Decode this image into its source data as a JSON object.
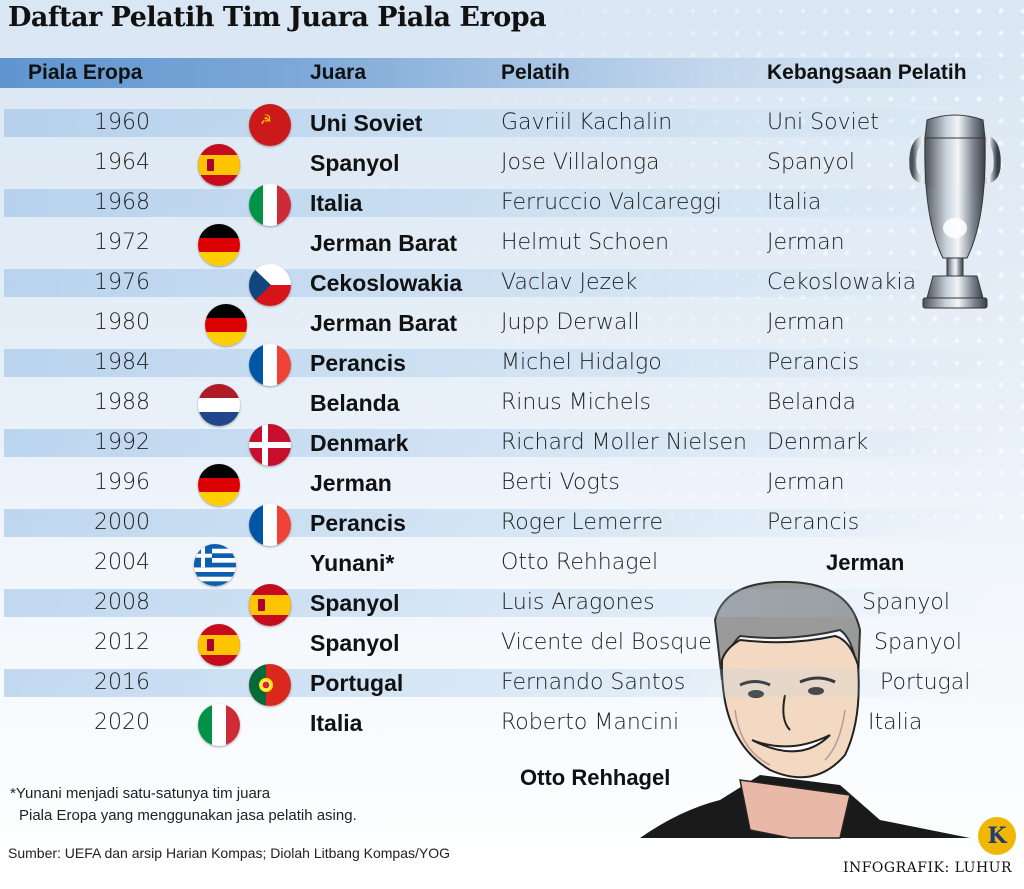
{
  "title": "Daftar Pelatih Tim Juara Piala Eropa",
  "headers": {
    "year": "Piala Eropa",
    "country": "Juara",
    "coach": "Pelatih",
    "nationality": "Kebangsaan Pelatih"
  },
  "rows": [
    {
      "year": "1960",
      "country": "Uni Soviet",
      "flag": "ussr-flag",
      "coach": "Gavriil Kachalin",
      "nationality": "Uni Soviet"
    },
    {
      "year": "1964",
      "country": "Spanyol",
      "flag": "spain-flag",
      "coach": "Jose Villalonga",
      "nationality": "Spanyol"
    },
    {
      "year": "1968",
      "country": "Italia",
      "flag": "italy-flag",
      "coach": "Ferruccio Valcareggi",
      "nationality": "Italia"
    },
    {
      "year": "1972",
      "country": "Jerman Barat",
      "flag": "germany-flag",
      "coach": "Helmut Schoen",
      "nationality": "Jerman"
    },
    {
      "year": "1976",
      "country": "Cekoslowakia",
      "flag": "czechoslovakia-flag",
      "coach": "Vaclav Jezek",
      "nationality": "Cekoslowakia"
    },
    {
      "year": "1980",
      "country": "Jerman Barat",
      "flag": "germany-flag",
      "coach": "Jupp Derwall",
      "nationality": "Jerman"
    },
    {
      "year": "1984",
      "country": "Perancis",
      "flag": "france-flag",
      "coach": "Michel Hidalgo",
      "nationality": "Perancis"
    },
    {
      "year": "1988",
      "country": "Belanda",
      "flag": "netherlands-flag",
      "coach": "Rinus Michels",
      "nationality": "Belanda"
    },
    {
      "year": "1992",
      "country": "Denmark",
      "flag": "denmark-flag",
      "coach": "Richard Moller Nielsen",
      "nationality": "Denmark"
    },
    {
      "year": "1996",
      "country": "Jerman",
      "flag": "germany-flag",
      "coach": "Berti Vogts",
      "nationality": "Jerman"
    },
    {
      "year": "2000",
      "country": "Perancis",
      "flag": "france-flag",
      "coach": "Roger Lemerre",
      "nationality": "Perancis"
    },
    {
      "year": "2004",
      "country": "Yunani*",
      "flag": "greece-flag",
      "coach": "Otto Rehhagel",
      "nationality": "Jerman"
    },
    {
      "year": "2008",
      "country": "Spanyol",
      "flag": "spain-flag",
      "coach": "Luis Aragones",
      "nationality": "Spanyol"
    },
    {
      "year": "2012",
      "country": "Spanyol",
      "flag": "spain-flag",
      "coach": "Vicente del Bosque",
      "nationality": "Spanyol"
    },
    {
      "year": "2016",
      "country": "Portugal",
      "flag": "portugal-flag",
      "coach": "Fernando Santos",
      "nationality": "Portugal"
    },
    {
      "year": "2020",
      "country": "Italia",
      "flag": "italy-flag",
      "coach": "Roberto Mancini",
      "nationality": "Italia"
    }
  ],
  "footnote_line1": "*Yunani menjadi satu-satunya tim juara",
  "footnote_line2": "Piala Eropa yang menggunakan jasa pelatih asing.",
  "source": "Sumber: UEFA dan arsip Harian Kompas; Diolah Litbang Kompas/YOG",
  "portrait_caption": "Otto Rehhagel",
  "credit": "INFOGRAFIK: LUHUR",
  "logo_letter": "K"
}
